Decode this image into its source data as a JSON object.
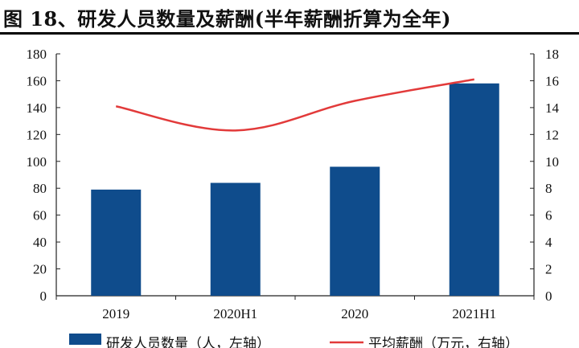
{
  "figure": {
    "title": "图 18、研发人员数量及薪酬(半年薪酬折算为全年)"
  },
  "colors": {
    "bar": "#0f4c8c",
    "line": "#e23a3a",
    "axis": "#222222"
  },
  "chart_data": {
    "type": "bar",
    "categories": [
      "2019",
      "2020H1",
      "2020",
      "2021H1"
    ],
    "series": [
      {
        "name": "研发人员数量（人，左轴）",
        "type": "bar",
        "axis": "left",
        "values": [
          79,
          84,
          96,
          158
        ]
      },
      {
        "name": "平均薪酬（万元，右轴）",
        "type": "line",
        "axis": "right",
        "values": [
          14.1,
          12.3,
          14.5,
          16.1
        ]
      }
    ],
    "y_left": {
      "range": [
        0,
        180
      ],
      "ticks": [
        "0",
        "20",
        "40",
        "60",
        "80",
        "100",
        "120",
        "140",
        "160",
        "180"
      ]
    },
    "y_right": {
      "range": [
        0,
        18
      ],
      "ticks": [
        "0",
        "2",
        "4",
        "6",
        "8",
        "10",
        "12",
        "14",
        "16",
        "18"
      ]
    },
    "grid": false,
    "legend_position": "bottom"
  }
}
